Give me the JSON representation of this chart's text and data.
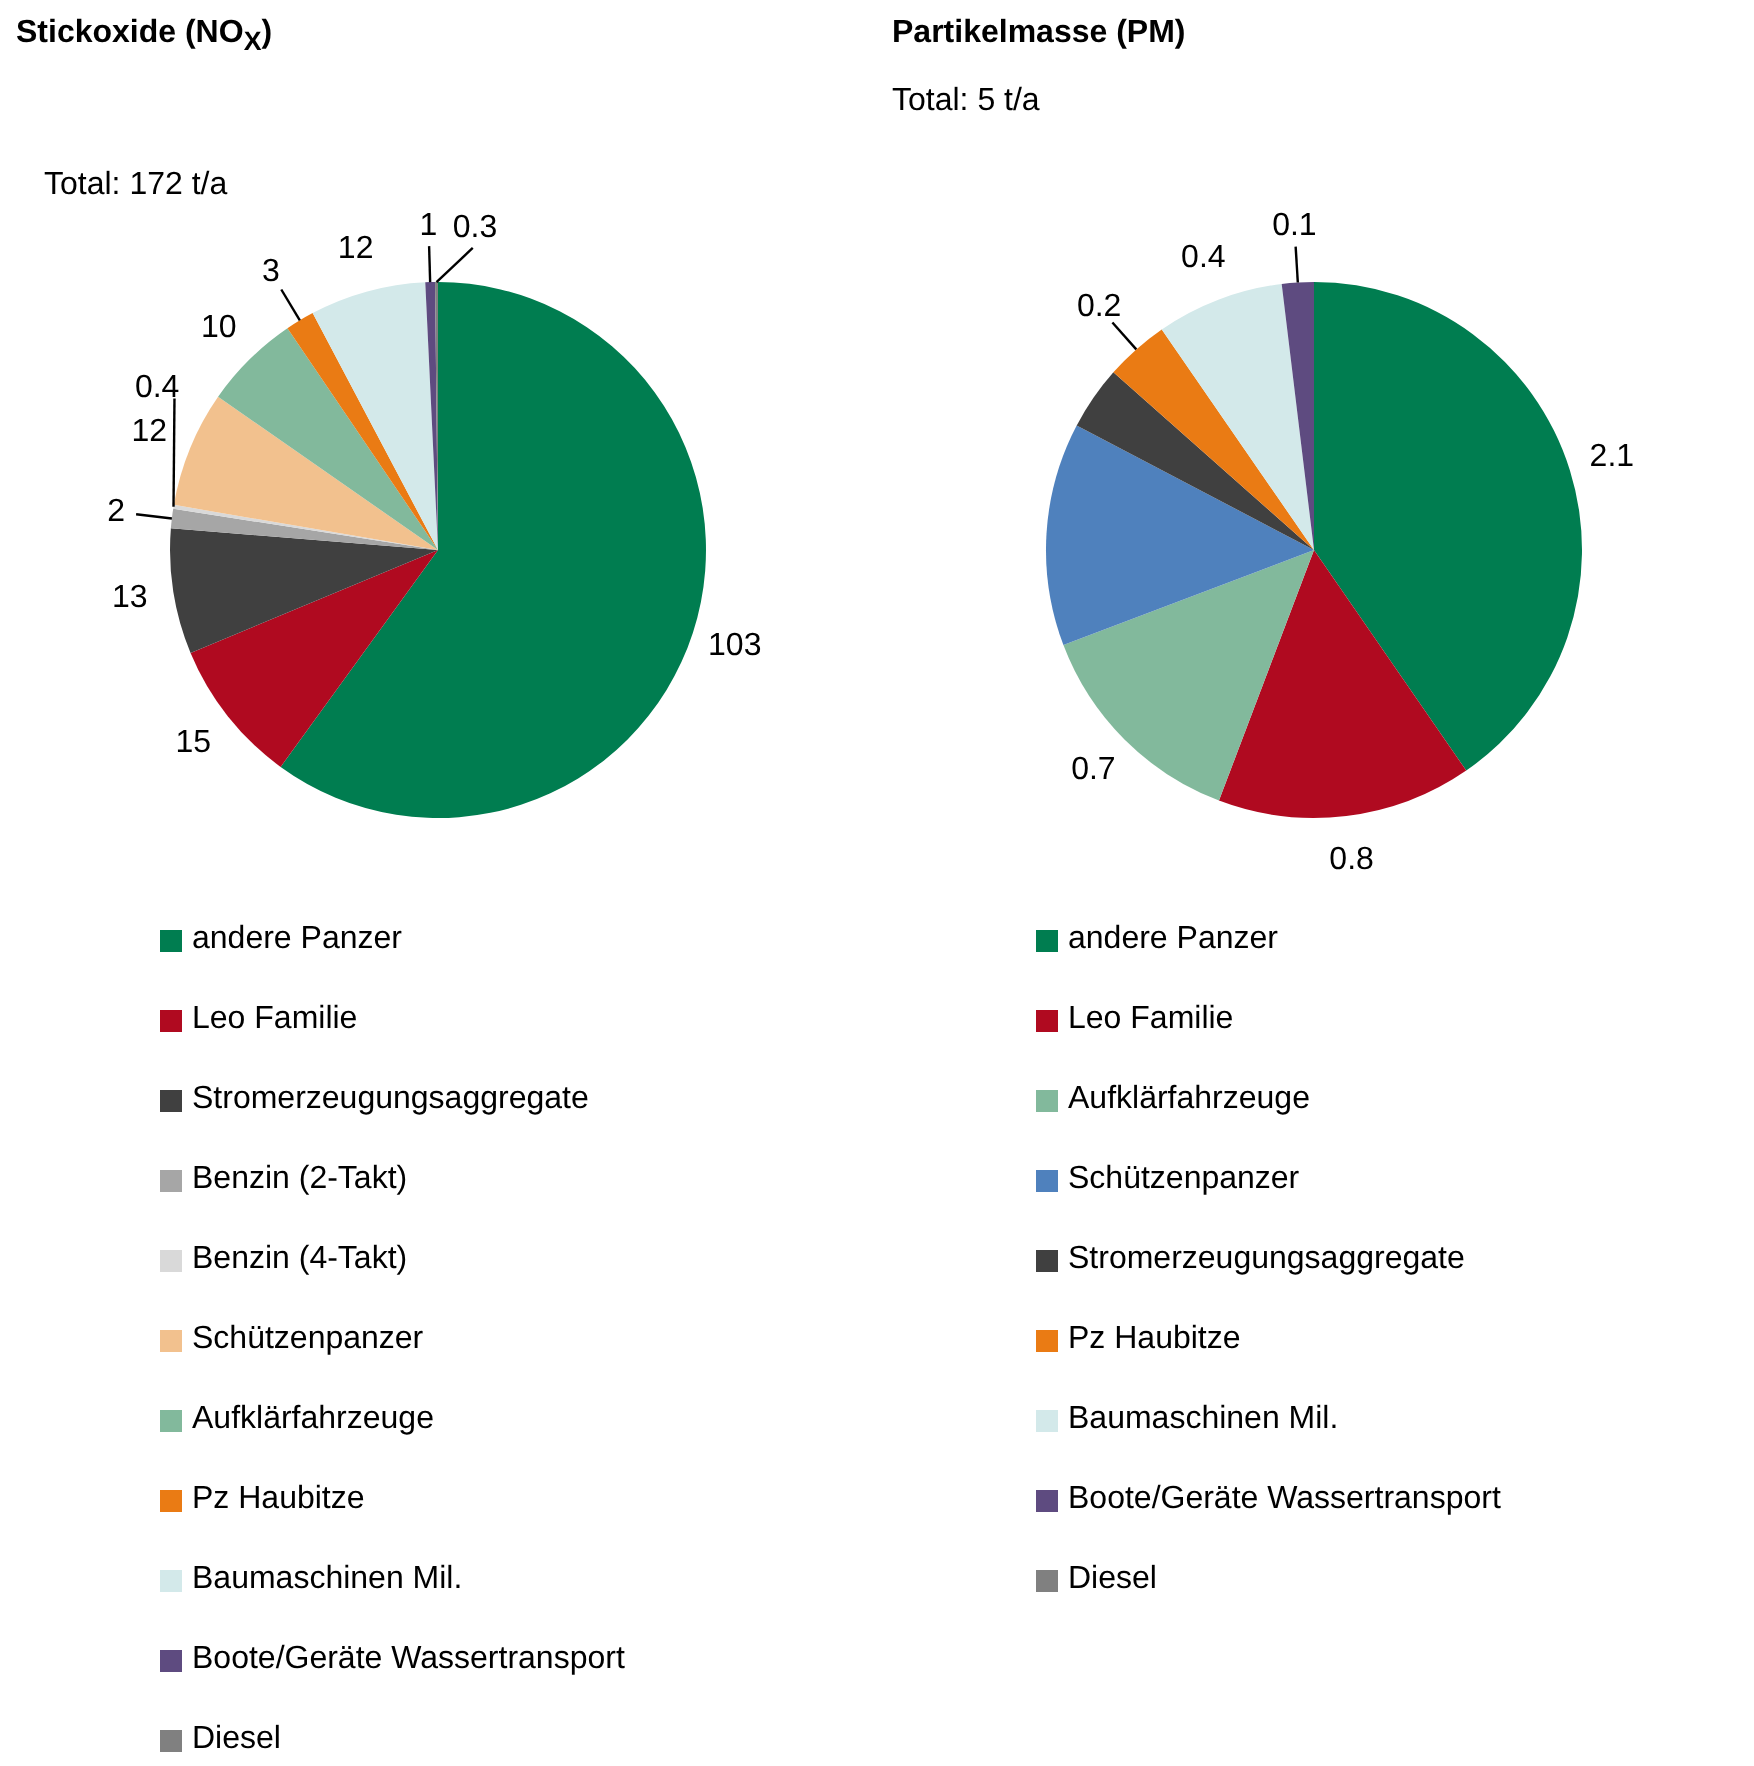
{
  "chart_data": [
    {
      "type": "pie",
      "title": "Stickoxide (NO$_{X}$)",
      "subtitle": "Total: 172 t/a",
      "categories": [
        "andere Panzer",
        "Leo Familie",
        "Stromerzeugungsaggregate",
        "Benzin (2-Takt)",
        "Benzin (4-Takt)",
        "Schützenpanzer",
        "Aufklärfahrzeuge",
        "Pz Haubitze",
        "Baumaschinen Mil.",
        "Boote/Geräte Wassertransport",
        "Diesel"
      ],
      "values": [
        103,
        15,
        13,
        2,
        0.4,
        12,
        10,
        3,
        12,
        1,
        0.3
      ],
      "colors": [
        "#007d50",
        "#b00a20",
        "#404040",
        "#a6a6a6",
        "#d9d9d9",
        "#f2c18e",
        "#82b99c",
        "#ea7b14",
        "#d3e9ea",
        "#5e4b80",
        "#808080"
      ],
      "data_labels": true,
      "legend": "bottom"
    },
    {
      "type": "pie",
      "title": "Partikelmasse (PM)",
      "subtitle": "Total: 5 t/a",
      "categories": [
        "andere Panzer",
        "Leo Familie",
        "Aufklärfahrzeuge",
        "Schützenpanzer",
        "Stromerzeugungsaggregate",
        "Pz Haubitze",
        "Baumaschinen Mil.",
        "Boote/Geräte Wassertransport",
        "Diesel"
      ],
      "values": [
        2.1,
        0.8,
        0.7,
        0.7,
        0.2,
        0.2,
        0.4,
        0.1,
        0
      ],
      "value_labels": [
        "2.1",
        "0.8",
        "0.7",
        null,
        null,
        "0.2",
        "0.4",
        "0.1",
        null
      ],
      "colors": [
        "#007d50",
        "#b00a20",
        "#82b99c",
        "#4f81bd",
        "#404040",
        "#ea7b14",
        "#d3e9ea",
        "#5e4b80",
        "#808080"
      ],
      "legend": "bottom"
    }
  ]
}
